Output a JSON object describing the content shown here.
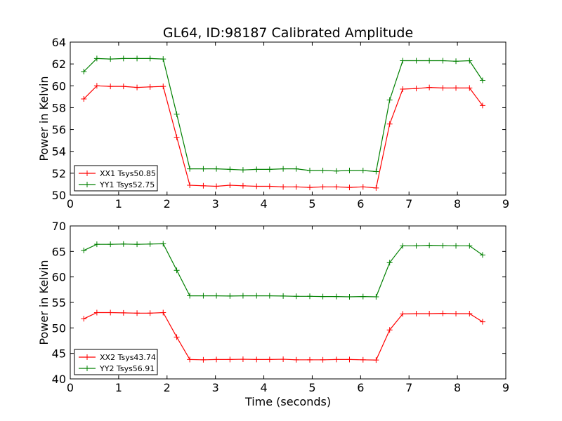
{
  "figure_title": "GL64, ID:98187 Calibrated Amplitude",
  "colors": {
    "red": "#ff0000",
    "green": "#008000",
    "axis": "#000000"
  },
  "chart_data": [
    {
      "type": "line",
      "title": "GL64, ID:98187 Calibrated Amplitude",
      "xlabel": "",
      "ylabel": "Power in Kelvin",
      "xlim": [
        0,
        9
      ],
      "ylim": [
        50,
        64
      ],
      "xticks": [
        0,
        1,
        2,
        3,
        4,
        5,
        6,
        7,
        8,
        9
      ],
      "yticks": [
        50,
        52,
        54,
        56,
        58,
        60,
        62,
        64
      ],
      "legend_position": "lower-left",
      "x": [
        0.28,
        0.55,
        0.83,
        1.1,
        1.38,
        1.65,
        1.92,
        2.2,
        2.47,
        2.75,
        3.02,
        3.3,
        3.57,
        3.85,
        4.12,
        4.4,
        4.67,
        4.95,
        5.22,
        5.5,
        5.77,
        6.05,
        6.32,
        6.6,
        6.87,
        7.15,
        7.42,
        7.7,
        7.97,
        8.25,
        8.52
      ],
      "series": [
        {
          "name": "XX1 Tsys50.85",
          "color": "#ff0000",
          "values": [
            58.8,
            60.0,
            59.95,
            59.95,
            59.85,
            59.9,
            59.95,
            55.3,
            50.9,
            50.85,
            50.8,
            50.9,
            50.85,
            50.8,
            50.8,
            50.75,
            50.75,
            50.7,
            50.75,
            50.75,
            50.7,
            50.75,
            50.65,
            56.5,
            59.7,
            59.75,
            59.85,
            59.8,
            59.8,
            59.8,
            58.2
          ]
        },
        {
          "name": "YY1 Tsys52.75",
          "color": "#008000",
          "values": [
            61.3,
            62.5,
            62.45,
            62.5,
            62.5,
            62.5,
            62.45,
            57.4,
            52.4,
            52.4,
            52.4,
            52.35,
            52.3,
            52.35,
            52.35,
            52.4,
            52.4,
            52.25,
            52.25,
            52.2,
            52.25,
            52.25,
            52.15,
            58.7,
            62.3,
            62.3,
            62.3,
            62.3,
            62.25,
            62.3,
            60.5
          ]
        }
      ]
    },
    {
      "type": "line",
      "title": "",
      "xlabel": "Time (seconds)",
      "ylabel": "Power in Kelvin",
      "xlim": [
        0,
        9
      ],
      "ylim": [
        40,
        70
      ],
      "xticks": [
        0,
        1,
        2,
        3,
        4,
        5,
        6,
        7,
        8,
        9
      ],
      "yticks": [
        40,
        45,
        50,
        55,
        60,
        65,
        70
      ],
      "legend_position": "lower-left",
      "x": [
        0.28,
        0.55,
        0.83,
        1.1,
        1.38,
        1.65,
        1.92,
        2.2,
        2.47,
        2.75,
        3.02,
        3.3,
        3.57,
        3.85,
        4.12,
        4.4,
        4.67,
        4.95,
        5.22,
        5.5,
        5.77,
        6.05,
        6.32,
        6.6,
        6.87,
        7.15,
        7.42,
        7.7,
        7.97,
        8.25,
        8.52
      ],
      "series": [
        {
          "name": "XX2 Tsys43.74",
          "color": "#ff0000",
          "values": [
            51.8,
            53.0,
            53.0,
            52.95,
            52.9,
            52.9,
            53.0,
            48.2,
            43.8,
            43.75,
            43.8,
            43.8,
            43.85,
            43.8,
            43.8,
            43.85,
            43.75,
            43.75,
            43.75,
            43.8,
            43.8,
            43.75,
            43.7,
            49.6,
            52.75,
            52.8,
            52.8,
            52.85,
            52.8,
            52.8,
            51.2
          ]
        },
        {
          "name": "YY2 Tsys56.91",
          "color": "#008000",
          "values": [
            65.2,
            66.4,
            66.4,
            66.45,
            66.4,
            66.45,
            66.5,
            61.3,
            56.3,
            56.3,
            56.3,
            56.25,
            56.3,
            56.3,
            56.3,
            56.25,
            56.2,
            56.2,
            56.15,
            56.15,
            56.1,
            56.15,
            56.1,
            62.8,
            66.1,
            66.1,
            66.2,
            66.15,
            66.1,
            66.1,
            64.3
          ]
        }
      ]
    }
  ]
}
